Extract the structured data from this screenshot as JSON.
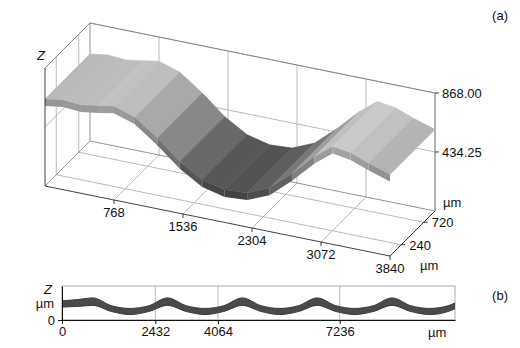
{
  "chart_data": [
    {
      "type": "surface",
      "title": "(a)",
      "zlabel": "Z",
      "xlabel": "µm",
      "ylabel": "µm",
      "x": [
        0,
        200,
        400,
        600,
        768,
        1000,
        1250,
        1500,
        1750,
        2000,
        2250,
        2500,
        2750,
        3000,
        3200,
        3400,
        3600,
        3840
      ],
      "values": [
        640,
        660,
        650,
        670,
        690,
        640,
        520,
        380,
        280,
        240,
        250,
        320,
        460,
        620,
        720,
        700,
        650,
        600
      ],
      "xlim": [
        0,
        3840
      ],
      "xticks": [
        768,
        1536,
        2304,
        3072,
        3840
      ],
      "ylim": [
        0,
        960
      ],
      "yticks": [
        240,
        720
      ],
      "zlim": [
        0,
        868
      ],
      "zticks": [
        434.25,
        {
          "value": 868,
          "label": "868.00"
        }
      ],
      "grid": true
    },
    {
      "type": "area",
      "title": "(b)",
      "xlabel": "µm",
      "ylabel": "Z",
      "yunit": "µm",
      "x": [
        0,
        400,
        800,
        1290,
        1775,
        2260,
        2750,
        3240,
        3725,
        4210,
        4700,
        5190,
        5675,
        6160,
        6650,
        7140,
        7625,
        8110,
        8600,
        9090,
        9575,
        10060,
        10240
      ],
      "series": [
        {
          "color": "#4a4a4a",
          "values": [
            560,
            600,
            650,
            420,
            340,
            420,
            650,
            420,
            340,
            420,
            650,
            420,
            340,
            420,
            650,
            420,
            340,
            420,
            650,
            420,
            340,
            420,
            500
          ]
        },
        {
          "color": "#4a4a4a",
          "values": [
            380,
            400,
            430,
            250,
            160,
            250,
            430,
            250,
            160,
            250,
            430,
            250,
            160,
            250,
            430,
            250,
            160,
            250,
            430,
            250,
            160,
            250,
            330
          ]
        }
      ],
      "xlim": [
        0,
        10240
      ],
      "xticks": [
        0,
        2432,
        4064,
        7236
      ],
      "ylim": [
        0,
        1000
      ],
      "yticks": [
        0
      ],
      "grid": true
    }
  ]
}
